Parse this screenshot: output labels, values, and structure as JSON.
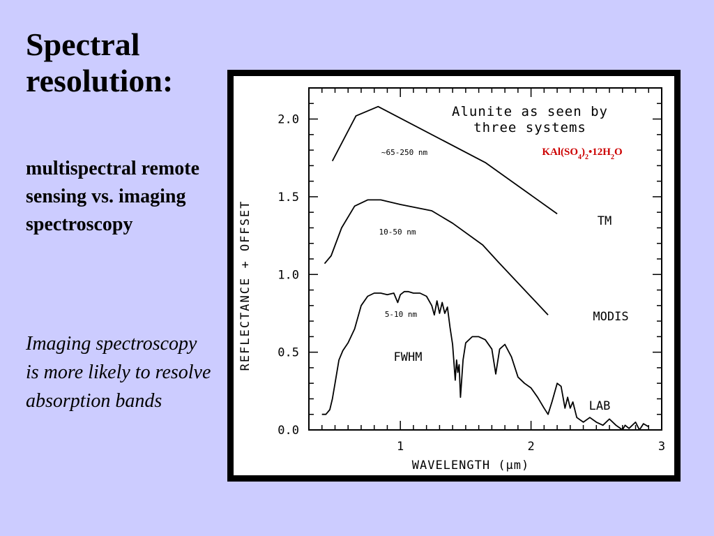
{
  "slide": {
    "title": "Spectral resolution:",
    "subtitle": "multispectral remote sensing vs. imaging spectroscopy",
    "note": "Imaging spectroscopy is more likely to resolve absorption bands"
  },
  "chart_data": {
    "type": "line",
    "title_lines": [
      "Alunite as seen by",
      "three systems"
    ],
    "xlabel": "WAVELENGTH (μm)",
    "ylabel": "REFLECTANCE + OFFSET",
    "xlim": [
      0.3,
      3.0
    ],
    "ylim": [
      0.0,
      2.2
    ],
    "x_ticks": [
      1,
      2,
      3
    ],
    "y_ticks": [
      "0.0",
      "0.5",
      "1.0",
      "1.5",
      "2.0"
    ],
    "formula": {
      "parts": [
        {
          "t": "KAl(SO",
          "s": "n"
        },
        {
          "t": "4",
          "s": "sub"
        },
        {
          "t": ")",
          "s": "n"
        },
        {
          "t": "2",
          "s": "sub"
        },
        {
          "t": "•12H",
          "s": "n"
        },
        {
          "t": "2",
          "s": "sub"
        },
        {
          "t": "O",
          "s": "n"
        }
      ],
      "color": "#cc0000"
    },
    "fwhm_label": "FWHM",
    "series": [
      {
        "name": "TM",
        "fwhm": "~65-250 nm",
        "x": [
          0.48,
          0.66,
          0.83,
          1.65,
          2.2
        ],
        "y": [
          1.73,
          2.02,
          2.08,
          1.72,
          1.39
        ]
      },
      {
        "name": "MODIS",
        "fwhm": "10-50 nm",
        "x": [
          0.42,
          0.47,
          0.55,
          0.65,
          0.75,
          0.85,
          1.0,
          1.24,
          1.4,
          1.63,
          1.75,
          2.13
        ],
        "y": [
          1.07,
          1.12,
          1.3,
          1.44,
          1.48,
          1.48,
          1.45,
          1.41,
          1.33,
          1.19,
          1.08,
          0.74
        ]
      },
      {
        "name": "LAB",
        "fwhm": "5-10 nm",
        "x": [
          0.4,
          0.43,
          0.46,
          0.48,
          0.5,
          0.53,
          0.56,
          0.6,
          0.65,
          0.7,
          0.75,
          0.8,
          0.85,
          0.9,
          0.95,
          0.98,
          1.0,
          1.03,
          1.06,
          1.1,
          1.15,
          1.2,
          1.24,
          1.26,
          1.28,
          1.3,
          1.32,
          1.34,
          1.36,
          1.38,
          1.4,
          1.42,
          1.43,
          1.44,
          1.45,
          1.46,
          1.48,
          1.5,
          1.55,
          1.6,
          1.65,
          1.7,
          1.73,
          1.76,
          1.8,
          1.85,
          1.9,
          1.95,
          2.0,
          2.05,
          2.1,
          2.13,
          2.16,
          2.2,
          2.23,
          2.26,
          2.28,
          2.3,
          2.32,
          2.35,
          2.4,
          2.45,
          2.5,
          2.55,
          2.6,
          2.65,
          2.7,
          2.72,
          2.75,
          2.8,
          2.83,
          2.86,
          2.9
        ],
        "y": [
          0.1,
          0.1,
          0.13,
          0.2,
          0.3,
          0.45,
          0.51,
          0.56,
          0.65,
          0.8,
          0.86,
          0.88,
          0.88,
          0.87,
          0.88,
          0.82,
          0.87,
          0.89,
          0.89,
          0.88,
          0.88,
          0.86,
          0.8,
          0.74,
          0.83,
          0.75,
          0.82,
          0.75,
          0.79,
          0.66,
          0.55,
          0.32,
          0.45,
          0.37,
          0.42,
          0.21,
          0.45,
          0.56,
          0.6,
          0.6,
          0.58,
          0.52,
          0.36,
          0.52,
          0.55,
          0.47,
          0.34,
          0.3,
          0.27,
          0.21,
          0.14,
          0.1,
          0.18,
          0.3,
          0.28,
          0.14,
          0.21,
          0.14,
          0.18,
          0.08,
          0.05,
          0.08,
          0.05,
          0.03,
          0.07,
          0.03,
          0.0,
          0.03,
          0.01,
          0.05,
          0.0,
          0.04,
          0.02
        ]
      }
    ]
  }
}
